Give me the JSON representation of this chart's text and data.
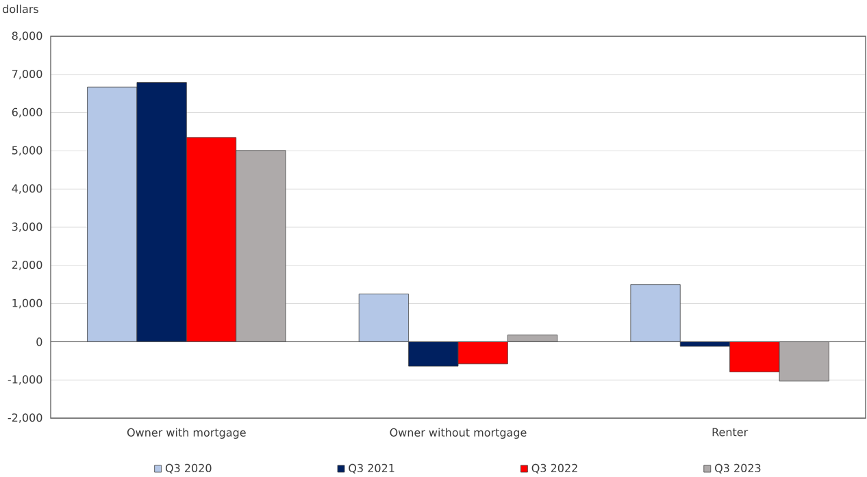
{
  "chart_data": {
    "type": "bar",
    "ylabel": "dollars",
    "categories": [
      "Owner with mortgage",
      "Owner without mortgage",
      "Renter"
    ],
    "series": [
      {
        "name": "Q3 2020",
        "color": "#b4c7e7",
        "values": [
          6670,
          1250,
          1500
        ]
      },
      {
        "name": "Q3 2021",
        "color": "#002060",
        "values": [
          6790,
          -640,
          -120
        ]
      },
      {
        "name": "Q3 2022",
        "color": "#ff0000",
        "values": [
          5350,
          -580,
          -790
        ]
      },
      {
        "name": "Q3 2023",
        "color": "#aeaaaa",
        "values": [
          5010,
          180,
          -1030
        ]
      }
    ],
    "ylim": [
      -2000,
      8000
    ],
    "yticks": [
      {
        "value": -2000,
        "label": "-2,000"
      },
      {
        "value": -1000,
        "label": "-1,000"
      },
      0,
      {
        "value": 1000,
        "label": "1,000"
      },
      {
        "value": 2000,
        "label": "2,000"
      },
      {
        "value": 3000,
        "label": "3,000"
      },
      {
        "value": 4000,
        "label": "4,000"
      },
      {
        "value": 5000,
        "label": "5,000"
      },
      {
        "value": 6000,
        "label": "6,000"
      },
      {
        "value": 7000,
        "label": "7,000"
      },
      {
        "value": 8000,
        "label": "8,000"
      }
    ],
    "grid": "y",
    "legend": "bottom"
  }
}
